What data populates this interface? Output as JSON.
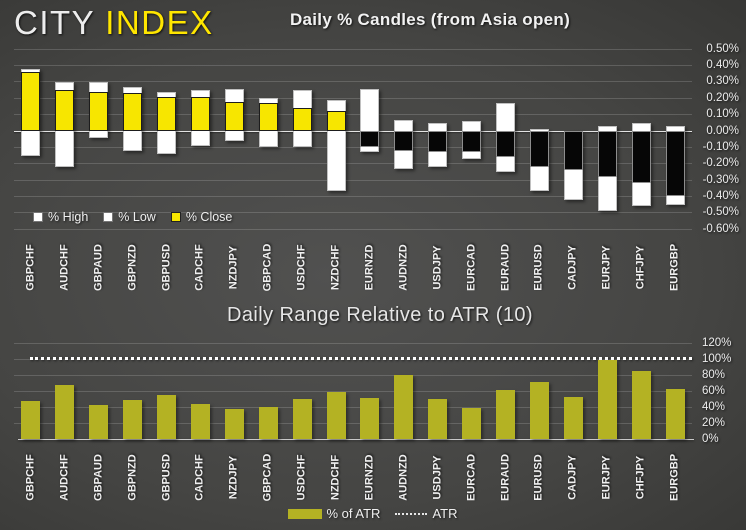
{
  "logo": {
    "city": "CITY",
    "index": "INDEX"
  },
  "colors": {
    "brand_yellow": "#ffe600",
    "candle_close_up": "#f7e600",
    "candle_range_white": "#ffffff",
    "candle_close_down": "#060606",
    "atr_bar_olive": "#b4b223",
    "atr_reference_line": "#ffffff",
    "background_dark": "#3c3c3a"
  },
  "chart_data": [
    {
      "type": "bar",
      "subtype": "daily-percent-candles-stacked-columns",
      "title": "Daily % Candles (from Asia open)",
      "categories": [
        "GBPCHF",
        "AUDCHF",
        "GBPAUD",
        "GBPNZD",
        "GBPUSD",
        "CADCHF",
        "NZDJPY",
        "GBPCAD",
        "USDCHF",
        "NZDCHF",
        "EURNZD",
        "AUDNZD",
        "USDJPY",
        "EURCAD",
        "EURAUD",
        "EURUSD",
        "CADJPY",
        "EURJPY",
        "CHFJPY",
        "EURGBP"
      ],
      "series": [
        {
          "name": "% High",
          "values": [
            0.38,
            0.3,
            0.3,
            0.27,
            0.24,
            0.25,
            0.26,
            0.2,
            0.25,
            0.19,
            0.26,
            0.07,
            0.05,
            0.06,
            0.17,
            0.01,
            0.0,
            0.03,
            0.05,
            0.03
          ]
        },
        {
          "name": "% Low",
          "values": [
            -0.15,
            -0.22,
            -0.04,
            -0.12,
            -0.14,
            -0.09,
            -0.06,
            -0.1,
            -0.1,
            -0.37,
            -0.13,
            -0.23,
            -0.22,
            -0.17,
            -0.25,
            -0.37,
            -0.42,
            -0.49,
            -0.46,
            -0.45
          ]
        },
        {
          "name": "% Close",
          "values": [
            0.36,
            0.25,
            0.24,
            0.23,
            0.21,
            0.21,
            0.18,
            0.17,
            0.14,
            0.12,
            -0.1,
            -0.12,
            -0.13,
            -0.13,
            -0.16,
            -0.22,
            -0.24,
            -0.28,
            -0.32,
            -0.4
          ]
        }
      ],
      "ylim": [
        -0.6,
        0.5
      ],
      "y_ticks": [
        "0.50%",
        "0.40%",
        "0.30%",
        "0.20%",
        "0.10%",
        "0.00%",
        "-0.10%",
        "-0.20%",
        "-0.30%",
        "-0.40%",
        "-0.50%",
        "-0.60%"
      ],
      "axis_side": "right",
      "grid": true,
      "legend": [
        {
          "label": "% High",
          "swatch": "white"
        },
        {
          "label": "% Low",
          "swatch": "white"
        },
        {
          "label": "% Close",
          "swatch": "yellow"
        }
      ],
      "legend_position": "inside-bottom-left"
    },
    {
      "type": "bar",
      "title": "Daily Range Relative to ATR (10)",
      "categories": [
        "GBPCHF",
        "AUDCHF",
        "GBPAUD",
        "GBPNZD",
        "GBPUSD",
        "CADCHF",
        "NZDJPY",
        "GBPCAD",
        "USDCHF",
        "NZDCHF",
        "EURNZD",
        "AUDNZD",
        "USDJPY",
        "EURCAD",
        "EURAUD",
        "EURUSD",
        "CADJPY",
        "EURJPY",
        "CHFJPY",
        "EURGBP"
      ],
      "series": [
        {
          "name": "% of ATR",
          "values": [
            48,
            68,
            43,
            49,
            55,
            44,
            38,
            40,
            50,
            59,
            52,
            80,
            50,
            39,
            62,
            71,
            53,
            99,
            86,
            63
          ]
        }
      ],
      "reference_line": {
        "name": "ATR",
        "value": 100,
        "style": "dotted"
      },
      "ylim": [
        0,
        120
      ],
      "y_ticks": [
        "120%",
        "100%",
        "80%",
        "60%",
        "40%",
        "20%",
        "0%"
      ],
      "axis_side": "right",
      "grid": true,
      "legend": [
        {
          "label": "% of ATR",
          "swatch": "olive"
        },
        {
          "label": "ATR",
          "swatch": "dotted"
        }
      ],
      "legend_position": "below"
    }
  ]
}
